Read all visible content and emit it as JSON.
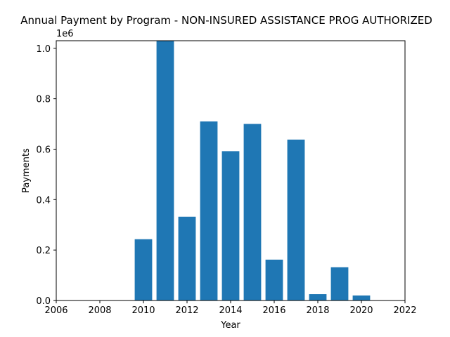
{
  "chart_data": {
    "type": "bar",
    "title": "Annual Payment by Program - NON-INSURED ASSISTANCE PROG AUTHORIZED",
    "xlabel": "Year",
    "ylabel": "Payments",
    "y_offset_label": "1e6",
    "x": [
      2010,
      2011,
      2012,
      2013,
      2014,
      2015,
      2016,
      2017,
      2018,
      2019,
      2020
    ],
    "values": [
      243000,
      1030000,
      332000,
      710000,
      592000,
      700000,
      162000,
      638000,
      25000,
      132000,
      20000
    ],
    "bar_width_years": 0.8,
    "xlim": [
      2006,
      2022
    ],
    "ylim": [
      0,
      1030000
    ],
    "x_ticks": [
      2006,
      2008,
      2010,
      2012,
      2014,
      2016,
      2018,
      2020,
      2022
    ],
    "x_tick_labels": [
      "2006",
      "2008",
      "2010",
      "2012",
      "2014",
      "2016",
      "2018",
      "2020",
      "2022"
    ],
    "y_ticks": [
      0,
      200000,
      400000,
      600000,
      800000,
      1000000
    ],
    "y_tick_labels": [
      "0.0",
      "0.2",
      "0.4",
      "0.6",
      "0.8",
      "1.0"
    ],
    "grid": false,
    "bar_color": "#1f77b4"
  }
}
